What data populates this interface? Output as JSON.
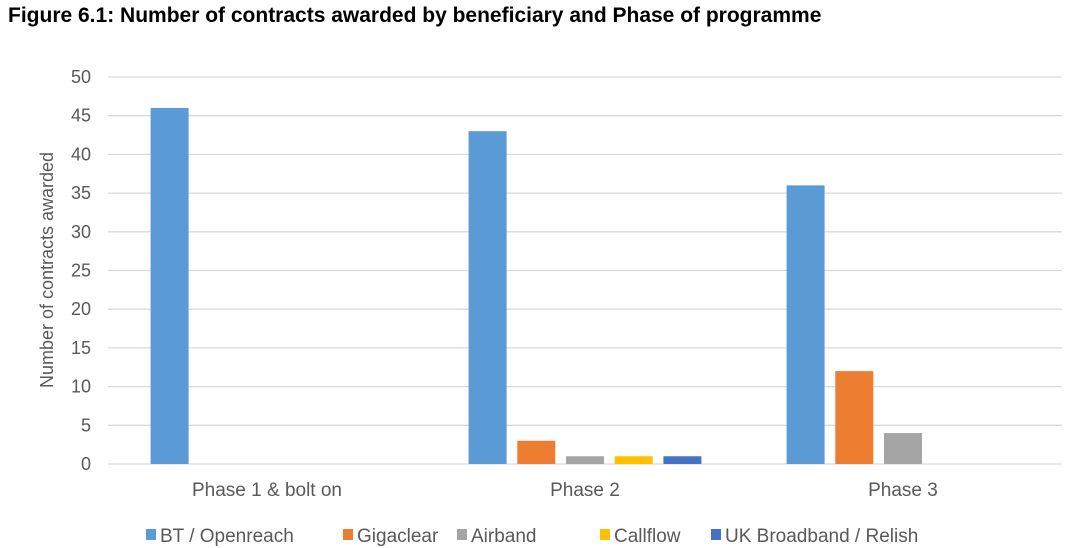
{
  "chart_data": {
    "type": "bar",
    "title": "Figure 6.1: Number of contracts awarded by beneficiary and Phase of programme",
    "xlabel": "",
    "ylabel": "Number of contracts awarded",
    "ylim": [
      0,
      50
    ],
    "yticks": [
      "0",
      "5",
      "10",
      "15",
      "20",
      "25",
      "30",
      "35",
      "40",
      "45",
      "50"
    ],
    "grid": true,
    "legend_position": "bottom",
    "categories": [
      "Phase 1 & bolt on",
      "Phase 2",
      "Phase 3"
    ],
    "series": [
      {
        "name": "BT / Openreach",
        "color": "#5B9BD5",
        "values": [
          46,
          43,
          36
        ]
      },
      {
        "name": "Gigaclear",
        "color": "#ED7D31",
        "values": [
          0,
          3,
          12
        ]
      },
      {
        "name": "Airband",
        "color": "#A5A5A5",
        "values": [
          0,
          1,
          4
        ]
      },
      {
        "name": "Callflow",
        "color": "#FFC000",
        "values": [
          0,
          1,
          0
        ]
      },
      {
        "name": "UK Broadband / Relish",
        "color": "#4472C4",
        "values": [
          0,
          1,
          0
        ]
      }
    ]
  }
}
